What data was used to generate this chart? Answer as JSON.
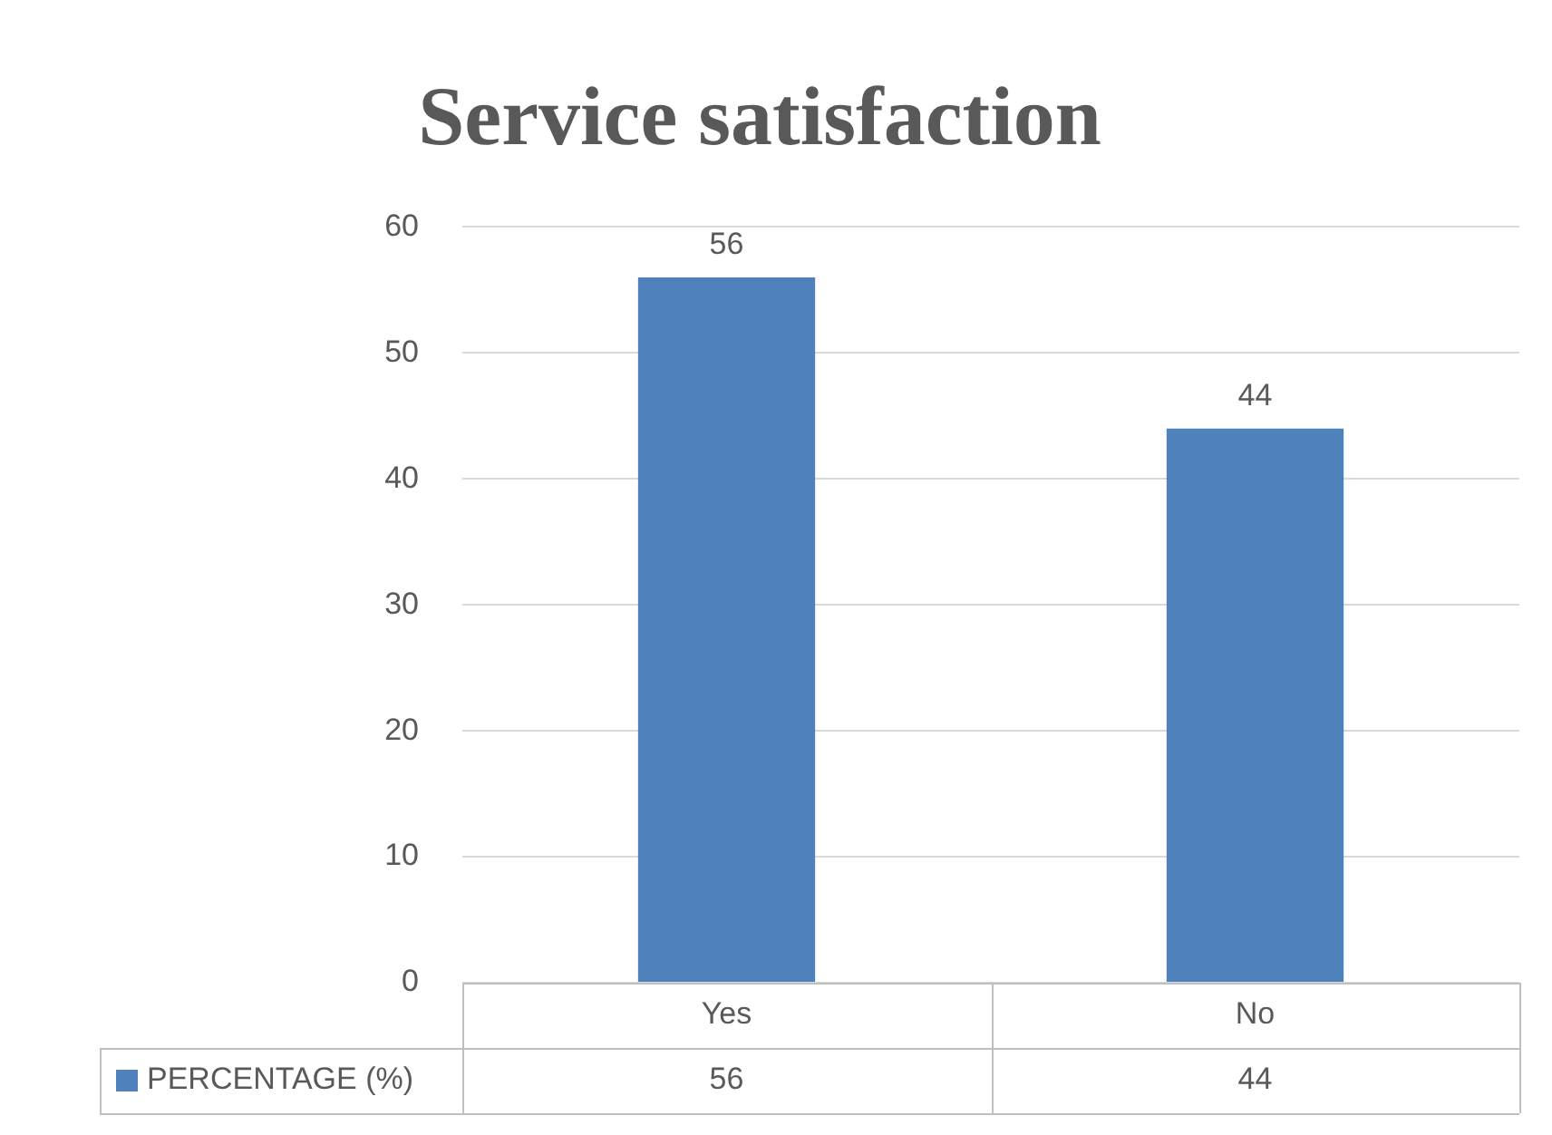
{
  "chart_data": {
    "type": "bar",
    "title": "Service satisfaction",
    "categories": [
      "Yes",
      "No"
    ],
    "series": [
      {
        "name": "PERCENTAGE (%)",
        "color": "#4f81bd",
        "values": [
          56,
          44
        ],
        "value_labels": [
          "56",
          "44"
        ]
      }
    ],
    "annotations": [
      "56",
      "44"
    ],
    "ylim": [
      0,
      60
    ],
    "yticks": [
      0,
      10,
      20,
      30,
      40,
      50,
      60
    ],
    "grid": "y",
    "data_labels": true,
    "legend": "bottom"
  }
}
